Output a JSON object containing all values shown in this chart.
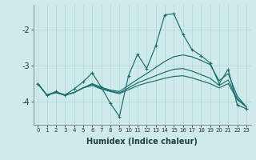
{
  "xlabel": "Humidex (Indice chaleur)",
  "background_color": "#ceeaea",
  "grid_color": "#b8d8d8",
  "line_color": "#1a6e6e",
  "xlim": [
    -0.5,
    23.5
  ],
  "ylim": [
    -4.65,
    -1.3
  ],
  "yticks": [
    -4,
    -3,
    -2
  ],
  "xticks": [
    0,
    1,
    2,
    3,
    4,
    5,
    6,
    7,
    8,
    9,
    10,
    11,
    12,
    13,
    14,
    15,
    16,
    17,
    18,
    19,
    20,
    21,
    22,
    23
  ],
  "main_line": {
    "x": [
      0,
      1,
      2,
      3,
      4,
      5,
      6,
      7,
      8,
      9,
      10,
      11,
      12,
      13,
      14,
      15,
      16,
      17,
      18,
      19,
      20,
      21,
      22,
      23
    ],
    "y": [
      -3.5,
      -3.82,
      -3.72,
      -3.82,
      -3.65,
      -3.45,
      -3.2,
      -3.6,
      -4.05,
      -4.42,
      -3.28,
      -2.68,
      -3.08,
      -2.45,
      -1.58,
      -1.55,
      -2.12,
      -2.55,
      -2.72,
      -2.92,
      -3.5,
      -3.1,
      -4.1,
      -4.2
    ]
  },
  "trend_lines": [
    {
      "x": [
        0,
        1,
        2,
        3,
        4,
        5,
        6,
        7,
        8,
        9,
        10,
        11,
        12,
        13,
        14,
        15,
        16,
        17,
        18,
        19,
        20,
        21,
        22,
        23
      ],
      "y": [
        -3.5,
        -3.82,
        -3.75,
        -3.82,
        -3.75,
        -3.62,
        -3.5,
        -3.6,
        -3.68,
        -3.72,
        -3.55,
        -3.38,
        -3.22,
        -3.05,
        -2.88,
        -2.75,
        -2.7,
        -2.75,
        -2.85,
        -2.97,
        -3.42,
        -3.22,
        -3.85,
        -4.15
      ]
    },
    {
      "x": [
        0,
        1,
        2,
        3,
        4,
        5,
        6,
        7,
        8,
        9,
        10,
        11,
        12,
        13,
        14,
        15,
        16,
        17,
        18,
        19,
        20,
        21,
        22,
        23
      ],
      "y": [
        -3.5,
        -3.82,
        -3.75,
        -3.82,
        -3.75,
        -3.62,
        -3.52,
        -3.63,
        -3.7,
        -3.76,
        -3.62,
        -3.48,
        -3.38,
        -3.28,
        -3.18,
        -3.1,
        -3.08,
        -3.15,
        -3.25,
        -3.35,
        -3.55,
        -3.4,
        -3.92,
        -4.15
      ]
    },
    {
      "x": [
        0,
        1,
        2,
        3,
        4,
        5,
        6,
        7,
        8,
        9,
        10,
        11,
        12,
        13,
        14,
        15,
        16,
        17,
        18,
        19,
        20,
        21,
        22,
        23
      ],
      "y": [
        -3.5,
        -3.82,
        -3.75,
        -3.82,
        -3.75,
        -3.62,
        -3.55,
        -3.65,
        -3.72,
        -3.78,
        -3.67,
        -3.56,
        -3.48,
        -3.42,
        -3.35,
        -3.3,
        -3.28,
        -3.34,
        -3.42,
        -3.5,
        -3.62,
        -3.5,
        -3.95,
        -4.15
      ]
    }
  ]
}
